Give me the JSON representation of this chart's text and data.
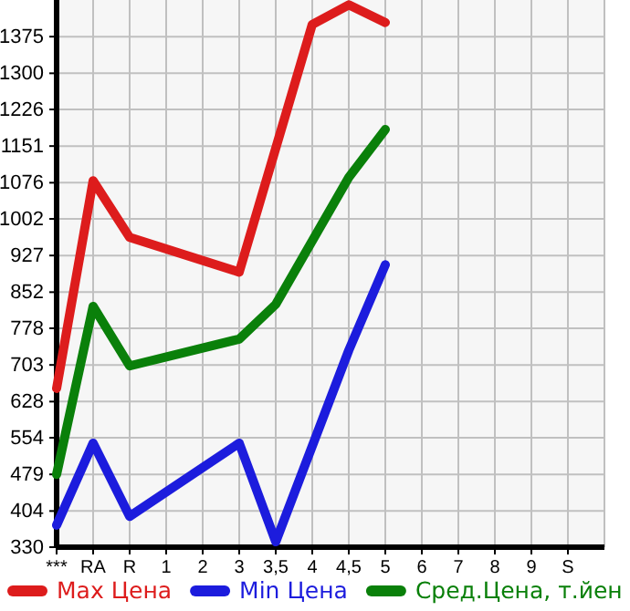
{
  "chart_data": {
    "type": "line",
    "categories": [
      "***",
      "RA",
      "R",
      "1",
      "2",
      "3",
      "3,5",
      "4",
      "4,5",
      "5",
      "6",
      "7",
      "8",
      "9",
      "S"
    ],
    "ylim": [
      330,
      1450
    ],
    "yticks": [
      330,
      404,
      479,
      554,
      628,
      703,
      778,
      852,
      927,
      1002,
      1076,
      1151,
      1226,
      1300,
      1375
    ],
    "grid": true,
    "legend": "bottom",
    "marker": "none",
    "series": [
      {
        "name": "Max Цена",
        "color": "#dd1c1c",
        "values": [
          655,
          1080,
          964,
          null,
          null,
          893,
          null,
          1400,
          1440,
          1404,
          null,
          null,
          null,
          null,
          null
        ]
      },
      {
        "name": "Min Цена",
        "color": "#1c1cdd",
        "values": [
          375,
          543,
          393,
          null,
          null,
          543,
          341,
          null,
          733,
          908,
          null,
          null,
          null,
          null,
          null
        ]
      },
      {
        "name": "Сред.Цена, т.йен",
        "color": "#0a800a",
        "values": [
          479,
          823,
          701,
          null,
          null,
          756,
          827,
          null,
          1087,
          1185,
          null,
          null,
          null,
          null,
          null
        ]
      }
    ]
  }
}
